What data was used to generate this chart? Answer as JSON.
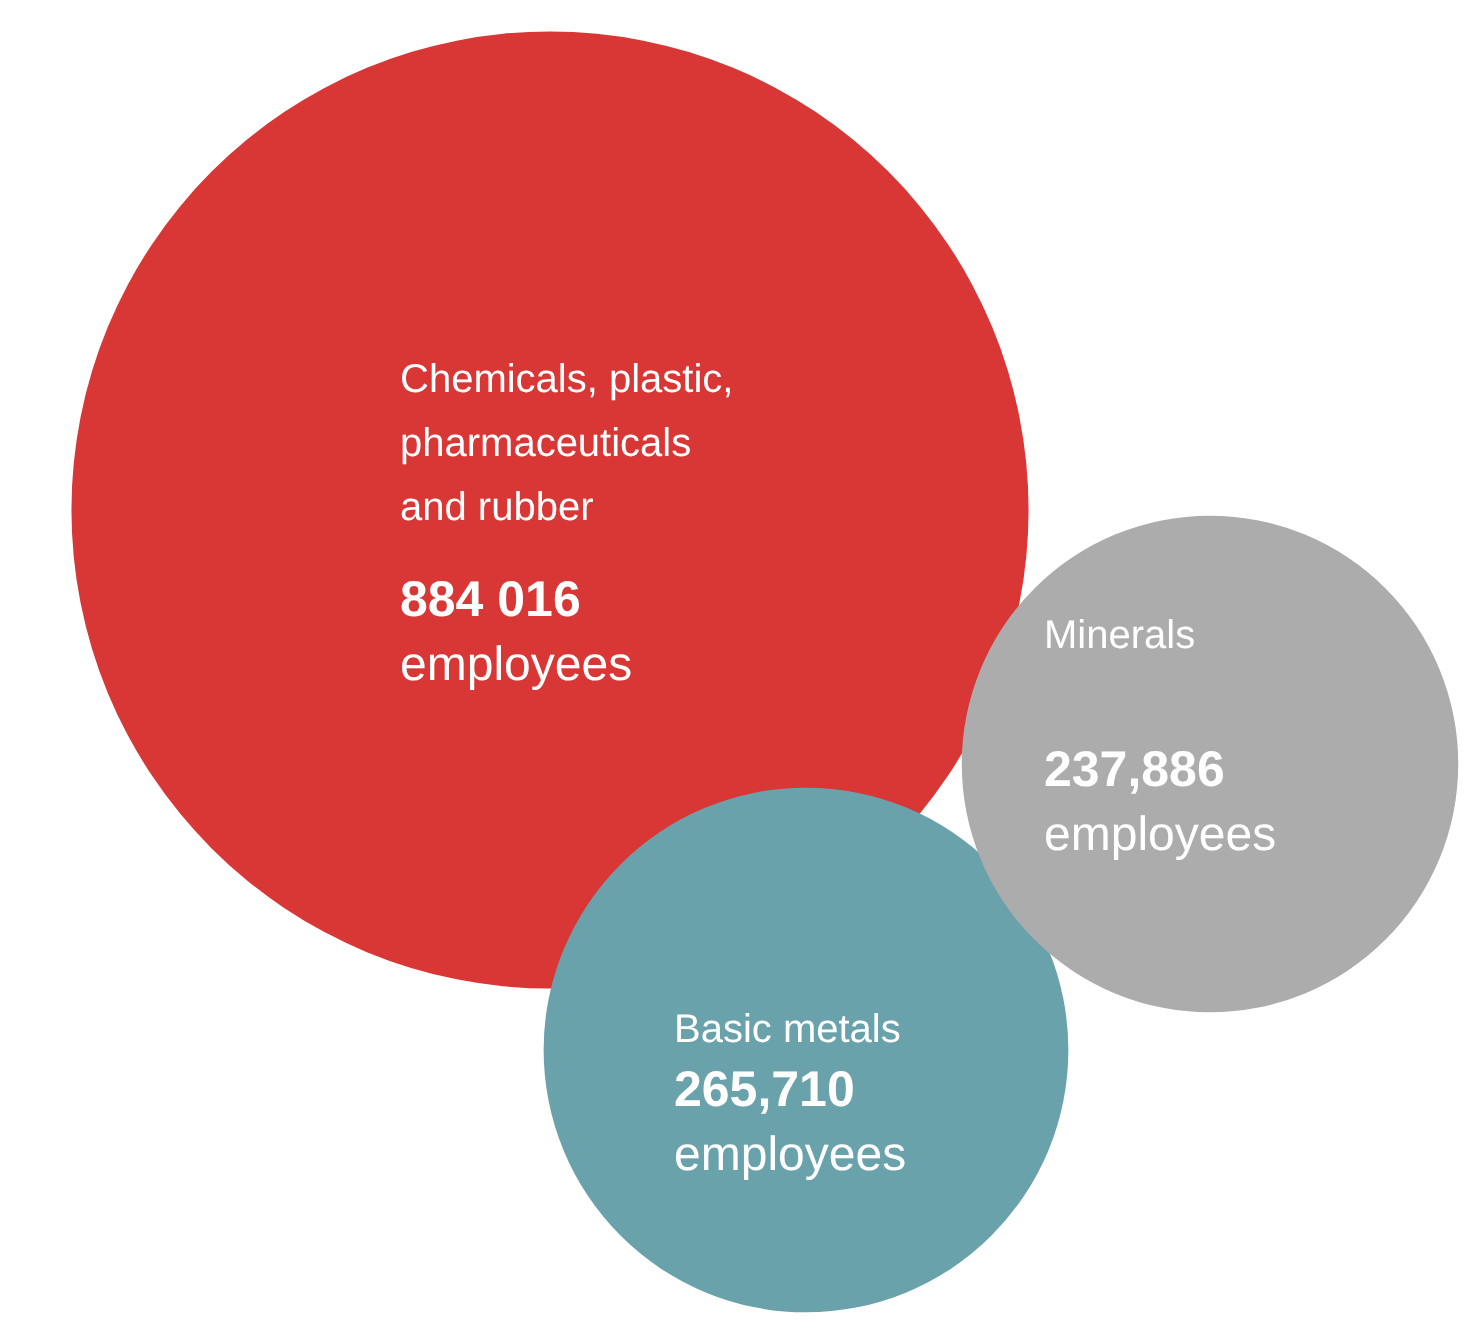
{
  "chart_data": {
    "type": "other",
    "categories": [
      "Chemicals, plastic,\npharmaceuticals\nand rubber",
      "Minerals",
      "Basic metals"
    ],
    "values": [
      884016,
      237886,
      265710
    ],
    "value_labels": [
      "884 016",
      "237,886",
      "265,710"
    ],
    "annotations": [
      "employees",
      "employees",
      "employees"
    ],
    "colors": [
      "#d93636",
      "#acacac",
      "#6aa2ab"
    ]
  }
}
